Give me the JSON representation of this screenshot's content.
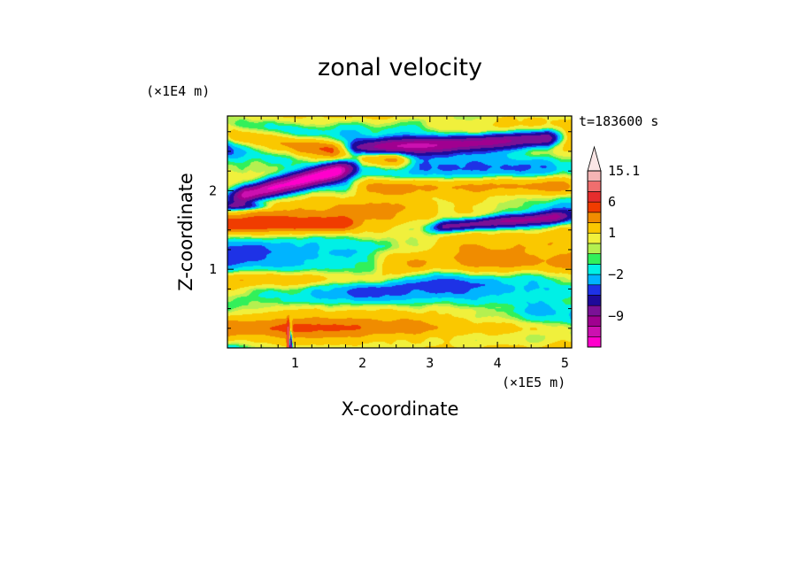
{
  "chart_data": {
    "type": "heatmap",
    "title": "zonal velocity",
    "xlabel": "X-coordinate",
    "ylabel": "Z-coordinate",
    "x_scale_label": "(×1E5 m)",
    "y_scale_label": "(×1E4 m)",
    "time_label": "t=183600 s",
    "xlim": [
      0,
      5.1
    ],
    "ylim": [
      0,
      2.95
    ],
    "x_ticks": [
      1,
      2,
      3,
      4,
      5
    ],
    "y_ticks": [
      1,
      2
    ],
    "colorbar": {
      "levels": [
        {
          "value": -13,
          "color": "#ff00cc"
        },
        {
          "value": -11,
          "color": "#cc10b0"
        },
        {
          "value": -9,
          "color": "#a00090"
        },
        {
          "value": -7,
          "color": "#7a1196"
        },
        {
          "value": -5,
          "color": "#1e0a9a"
        },
        {
          "value": -3,
          "color": "#1e32e6"
        },
        {
          "value": -2,
          "color": "#00b4ff"
        },
        {
          "value": -1,
          "color": "#00f0e6"
        },
        {
          "value": 0,
          "color": "#32f05a"
        },
        {
          "value": 0.5,
          "color": "#b4f050"
        },
        {
          "value": 1,
          "color": "#f0f03c"
        },
        {
          "value": 2,
          "color": "#fac800"
        },
        {
          "value": 4,
          "color": "#f08c00"
        },
        {
          "value": 6,
          "color": "#f03c00"
        },
        {
          "value": 9,
          "color": "#e62d2d"
        },
        {
          "value": 12,
          "color": "#f06e6e"
        },
        {
          "value": 15.1,
          "color": "#f5b4b4"
        }
      ],
      "tick_labels": [
        "15.1",
        "6",
        "1",
        "−2",
        "−9"
      ],
      "tick_values": [
        15.1,
        6,
        1,
        -2,
        -9
      ],
      "extend": "max"
    },
    "features": [
      {
        "type": "jet",
        "sign": "negative",
        "x_range": [
          0.3,
          1.6
        ],
        "z_center": 2.1,
        "peak_ms": -9
      },
      {
        "type": "jet",
        "sign": "negative",
        "x_range": [
          2.2,
          4.7
        ],
        "z_center": 2.62,
        "peak_ms": -8
      },
      {
        "type": "jet",
        "sign": "negative",
        "x_range": [
          3.2,
          4.9
        ],
        "z_center": 1.58,
        "peak_ms": -6
      },
      {
        "type": "jet",
        "sign": "positive",
        "x_range": [
          0.1,
          2.5
        ],
        "z_center": 2.55,
        "peak_ms": 6
      },
      {
        "type": "jet",
        "sign": "positive",
        "x_range": [
          2.0,
          5.0
        ],
        "z_center": 2.05,
        "peak_ms": 5
      },
      {
        "type": "jet",
        "sign": "positive",
        "x_range": [
          0.0,
          1.6
        ],
        "z_center": 1.57,
        "peak_ms": 5
      },
      {
        "type": "jet",
        "sign": "positive",
        "x_range": [
          2.5,
          5.1
        ],
        "z_center": 1.05,
        "peak_ms": 3
      },
      {
        "type": "jet",
        "sign": "positive",
        "x_range": [
          0.0,
          2.5
        ],
        "z_center": 0.85,
        "peak_ms": 3
      },
      {
        "type": "plume",
        "x": 0.9,
        "z_top": 0.45,
        "peak_ms": 15.1
      }
    ]
  }
}
